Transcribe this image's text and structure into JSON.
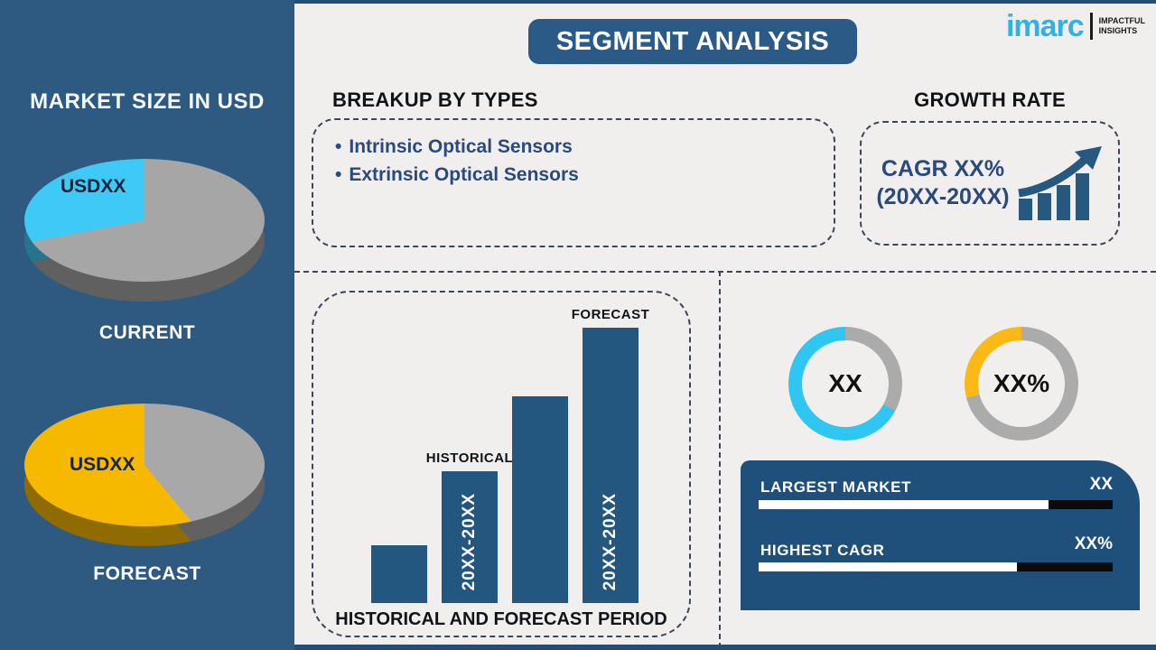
{
  "header": {
    "title": "SEGMENT ANALYSIS"
  },
  "logo": {
    "brand": "imarc",
    "tagline_line1": "IMPACTFUL",
    "tagline_line2": "INSIGHTS"
  },
  "sidebar": {
    "heading": "MARKET SIZE IN USD",
    "current_caption": "CURRENT",
    "forecast_caption": "FORECAST"
  },
  "breakup": {
    "heading": "BREAKUP BY TYPES",
    "bullet": "•",
    "items": [
      "Intrinsic Optical Sensors",
      "Extrinsic Optical Sensors"
    ]
  },
  "growth": {
    "heading": "GROWTH RATE",
    "line1": "CAGR XX%",
    "line2": "(20XX-20XX)"
  },
  "colors": {
    "sidebar_navy": "#2e5a82",
    "chart_navy": "#24577f",
    "panel_navy": "#1f4f7b",
    "cyan": "#2fc6f2",
    "yellow": "#fcb916",
    "gray": "#ababab",
    "logo_cyan": "#31b2e4"
  },
  "chart_data": [
    {
      "id": "pie-current",
      "type": "pie",
      "title": "CURRENT",
      "style": "3d",
      "slices": [
        {
          "label": "USDXX",
          "pct": 28,
          "color": "#3fc9f6"
        },
        {
          "label": "",
          "pct": 72,
          "color": "#a6a6a6"
        }
      ]
    },
    {
      "id": "pie-forecast",
      "type": "pie",
      "title": "FORECAST",
      "style": "3d",
      "slices": [
        {
          "label": "USDXX",
          "pct": 61,
          "color": "#f7b800"
        },
        {
          "label": "",
          "pct": 39,
          "color": "#a8a8a8"
        }
      ]
    },
    {
      "id": "period",
      "type": "bar",
      "title": "HISTORICAL AND FORECAST PERIOD",
      "values": [
        21,
        48,
        75,
        100
      ],
      "ylim": [
        0,
        100
      ],
      "bar_color": "#24577f",
      "bar_top_labels": [
        "",
        "HISTORICAL",
        "",
        "FORECAST"
      ],
      "bar_inner_labels": [
        "",
        "20XX-20XX",
        "",
        "20XX-20XX"
      ],
      "note": "unlabeled axis, relative heights"
    },
    {
      "id": "donut-1",
      "type": "donut",
      "center_label": "XX",
      "filled_pct": 67,
      "fill_color": "#2fc6f2",
      "rest_color": "#ababab"
    },
    {
      "id": "donut-2",
      "type": "donut",
      "center_label": "XX%",
      "filled_pct": 29,
      "fill_color": "#fcb916",
      "rest_color": "#ababab"
    },
    {
      "id": "stats",
      "type": "bar",
      "rows": [
        {
          "label": "LARGEST MARKET",
          "value": "XX",
          "fill_pct": 82
        },
        {
          "label": "HIGHEST CAGR",
          "value": "XX%",
          "fill_pct": 73
        }
      ]
    }
  ]
}
